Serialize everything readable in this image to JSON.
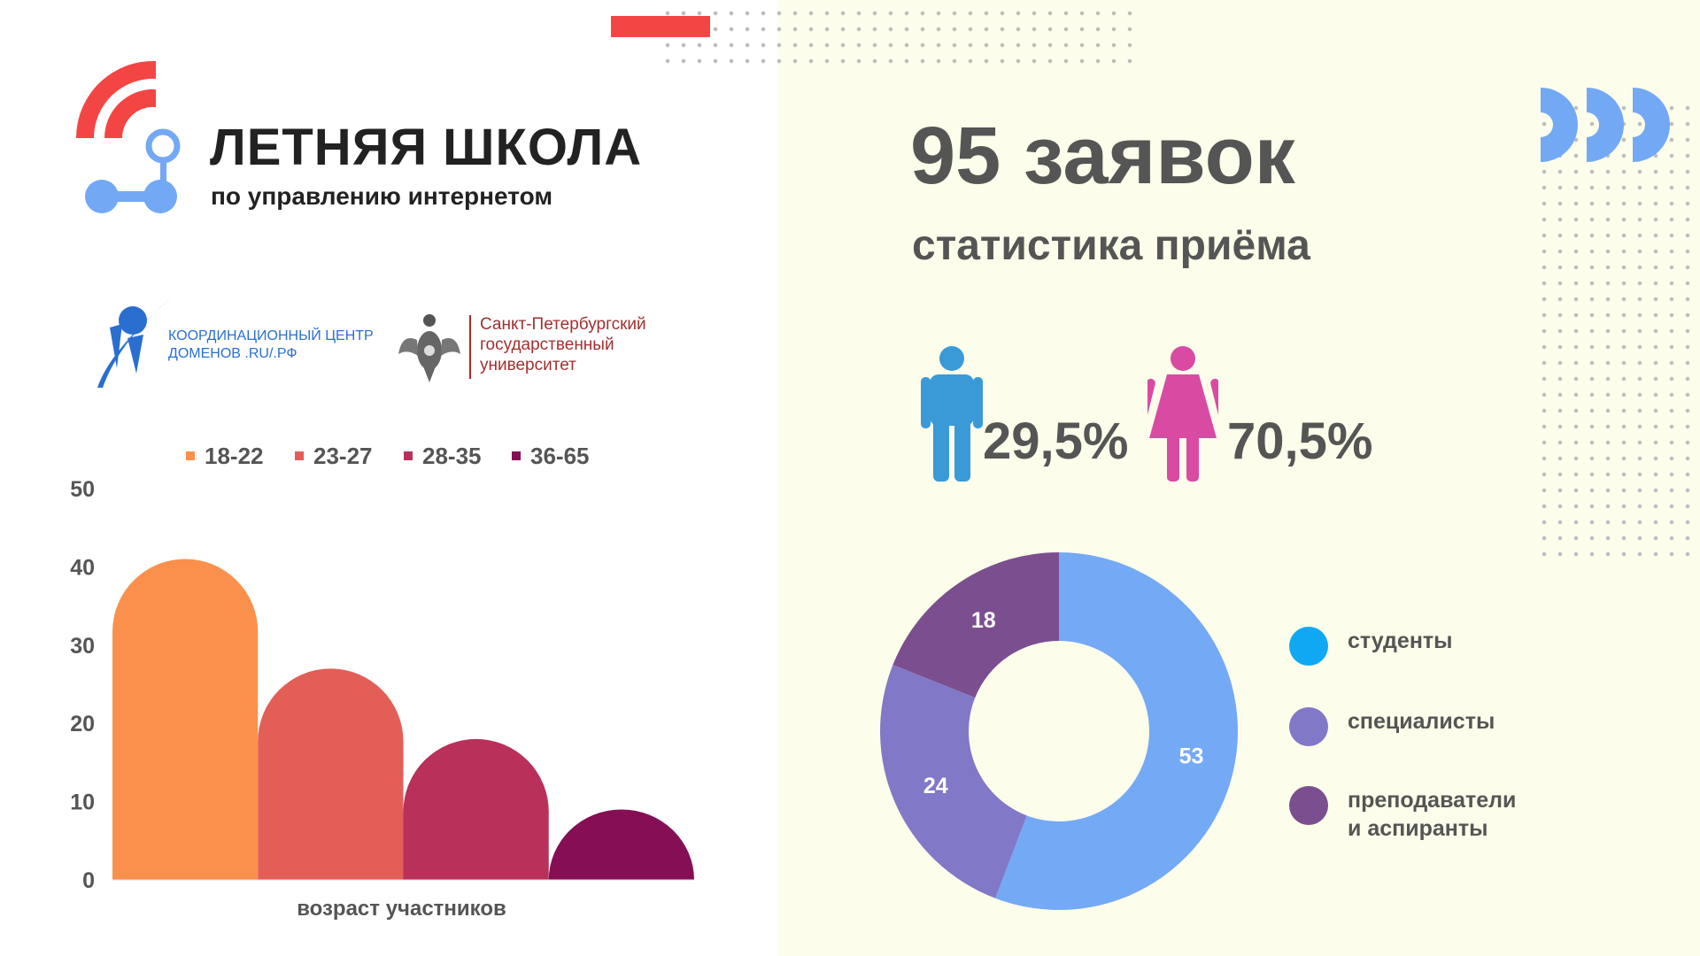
{
  "header": {
    "title": "ЛЕТНЯЯ ШКОЛА",
    "subtitle": "по управлению интернетом"
  },
  "partners": {
    "cc_line1": "КООРДИНАЦИОННЫЙ ЦЕНТР",
    "cc_line2": "ДОМЕНОВ .RU/.РФ",
    "spbu_line1": "Санкт-Петербургский",
    "spbu_line2": "государственный",
    "spbu_line3": "университет"
  },
  "summary": {
    "title": "95 заявок",
    "subtitle": "статистика приёма"
  },
  "gender": {
    "male_percent": "29,5%",
    "female_percent": "70,5%",
    "male_color": "#3a9ad8",
    "female_color": "#d94ba3"
  },
  "chart_data": [
    {
      "type": "bar",
      "title": "",
      "xlabel": "возраст участников",
      "ylabel": "",
      "ylim": [
        0,
        50
      ],
      "yticks": [
        0,
        10,
        20,
        30,
        40,
        50
      ],
      "legend_position": "top",
      "categories": [
        "возраст участников"
      ],
      "series": [
        {
          "name": "18-22",
          "values": [
            41
          ],
          "color": "#fb904c"
        },
        {
          "name": "23-27",
          "values": [
            27
          ],
          "color": "#e35e57"
        },
        {
          "name": "28-35",
          "values": [
            18
          ],
          "color": "#b9305a"
        },
        {
          "name": "36-65",
          "values": [
            9
          ],
          "color": "#850e55"
        }
      ]
    },
    {
      "type": "pie",
      "title": "",
      "donut": true,
      "legend_position": "right",
      "slices": [
        {
          "label": "студенты",
          "value": 53,
          "color": "#74a9f5",
          "legend_color": "#10a8f3"
        },
        {
          "label": "специалисты",
          "value": 24,
          "color": "#8278c8",
          "legend_color": "#8278c8"
        },
        {
          "label": "преподаватели и аспиранты",
          "label_lines": [
            "преподаватели",
            "и аспиранты"
          ],
          "value": 18,
          "color": "#7b4f8f",
          "legend_color": "#7b4f8f"
        }
      ]
    }
  ]
}
